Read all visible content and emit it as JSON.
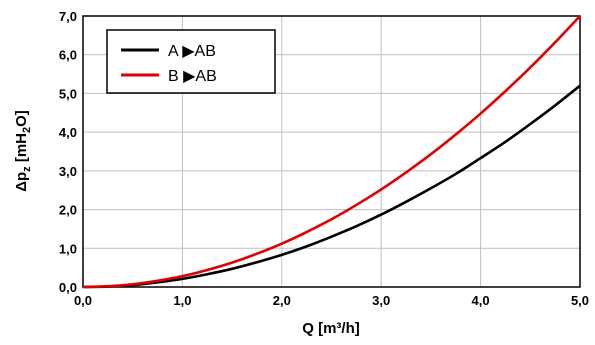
{
  "chart_data": {
    "type": "line",
    "title": "",
    "xlabel": "Q [m³/h]",
    "ylabel": {
      "base": "Δp",
      "sub": "z",
      "rest1": " [mH",
      "sub2": "2",
      "rest2": "O]"
    },
    "xlim": [
      0,
      5
    ],
    "ylim": [
      0,
      7
    ],
    "xticks": [
      "0,0",
      "1,0",
      "2,0",
      "3,0",
      "4,0",
      "5,0"
    ],
    "yticks": [
      "0,0",
      "1,0",
      "2,0",
      "3,0",
      "4,0",
      "5,0",
      "6,0",
      "7,0"
    ],
    "grid": true,
    "legend_position": "top-left",
    "x": [
      0.0,
      0.25,
      0.5,
      0.75,
      1.0,
      1.25,
      1.5,
      1.75,
      2.0,
      2.25,
      2.5,
      2.75,
      3.0,
      3.25,
      3.5,
      3.75,
      4.0,
      4.25,
      4.5,
      4.75,
      5.0
    ],
    "series": [
      {
        "name": "A ▶AB",
        "color": "#000000",
        "values": [
          0.0,
          0.01,
          0.05,
          0.12,
          0.21,
          0.33,
          0.47,
          0.64,
          0.83,
          1.05,
          1.3,
          1.57,
          1.87,
          2.2,
          2.55,
          2.92,
          3.33,
          3.75,
          4.21,
          4.69,
          5.2
        ]
      },
      {
        "name": "B ▶AB",
        "color": "#e00000",
        "values": [
          0.0,
          0.02,
          0.07,
          0.16,
          0.28,
          0.44,
          0.63,
          0.86,
          1.12,
          1.42,
          1.75,
          2.12,
          2.52,
          2.96,
          3.43,
          3.94,
          4.48,
          5.06,
          5.67,
          6.32,
          7.0
        ]
      }
    ]
  }
}
